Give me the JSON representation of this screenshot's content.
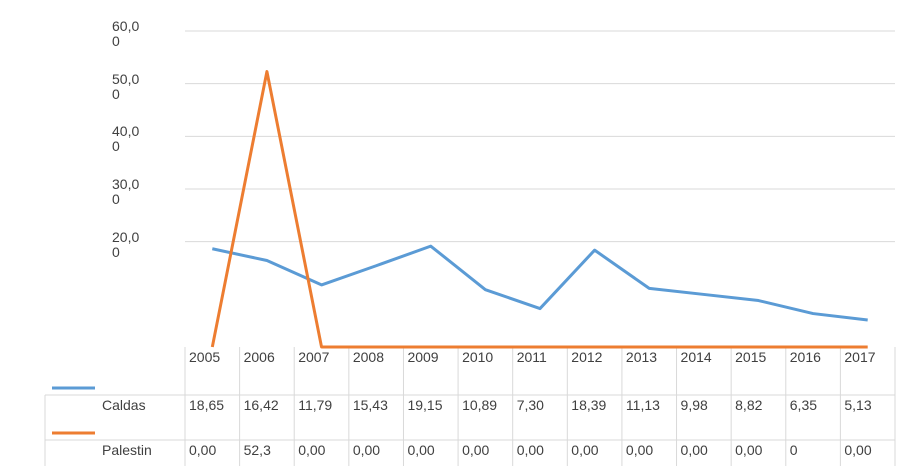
{
  "chart_data": {
    "type": "line",
    "categories": [
      "2005",
      "2006",
      "2007",
      "2008",
      "2009",
      "2010",
      "2011",
      "2012",
      "2013",
      "2014",
      "2015",
      "2016",
      "2017"
    ],
    "series": [
      {
        "name": "Caldas",
        "color": "#5b9bd5",
        "values": [
          18.65,
          16.42,
          11.79,
          15.43,
          19.15,
          10.89,
          7.3,
          18.39,
          11.13,
          9.98,
          8.82,
          6.35,
          5.13
        ],
        "value_labels": [
          "18,65",
          "16,42",
          "11,79",
          "15,43",
          "19,15",
          "10,89",
          "7,30",
          "18,39",
          "11,13",
          "9,98",
          "8,82",
          "6,35",
          "5,13"
        ]
      },
      {
        "name": "Palestin",
        "color": "#ed7d31",
        "values": [
          0,
          52.3,
          0,
          0,
          0,
          0,
          0,
          0,
          0,
          0,
          0,
          0,
          0
        ],
        "value_labels": [
          "0,00",
          "52,3",
          "0,00",
          "0,00",
          "0,00",
          "0,00",
          "0,00",
          "0,00",
          "0,00",
          "0,00",
          "0,00",
          "0",
          "0,00"
        ]
      }
    ],
    "ylim": [
      0,
      60
    ],
    "yticks": [
      {
        "value": 20,
        "label": "20,00"
      },
      {
        "value": 30,
        "label": "30,00"
      },
      {
        "value": 40,
        "label": "40,00"
      },
      {
        "value": 50,
        "label": "50,00"
      },
      {
        "value": 60,
        "label": "60,00"
      }
    ],
    "grid": true
  }
}
